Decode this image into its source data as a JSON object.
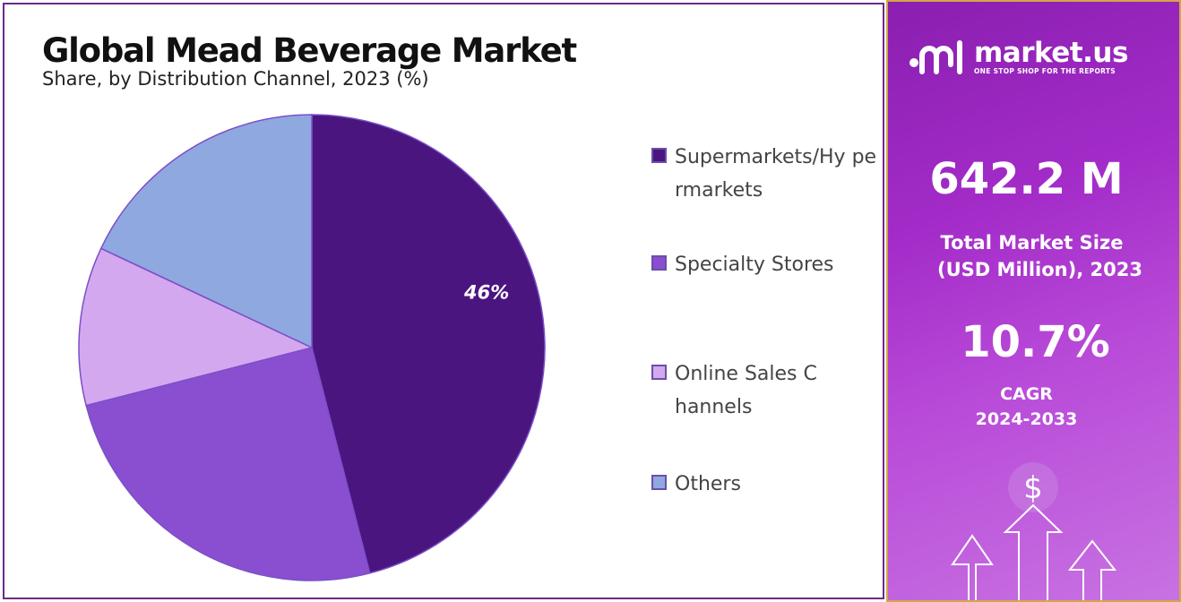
{
  "chart_data": {
    "type": "pie",
    "title": "Global Mead Beverage Market",
    "subtitle": "Share, by Distribution Channel, 2023 (%)",
    "slices": [
      {
        "label": "Supermarkets/Hypermarkets",
        "legend_text": "Supermarkets/Hy permarkets",
        "value": 46,
        "color": "#4b1580",
        "data_label": "46%"
      },
      {
        "label": "Specialty Stores",
        "legend_text": "Specialty Stores",
        "value": 25,
        "color": "#8a4fd0",
        "data_label": ""
      },
      {
        "label": "Online Sales Channels",
        "legend_text": "Online Sales Channels",
        "value": 11,
        "color": "#d4a8ee",
        "data_label": ""
      },
      {
        "label": "Others",
        "legend_text": "Others",
        "value": 18,
        "color": "#8fa8df",
        "data_label": ""
      }
    ],
    "start_angle_deg": 0,
    "direction": "clockwise",
    "legend_position": "right"
  },
  "sidebar": {
    "brand_name": "market.us",
    "brand_tagline": "ONE STOP SHOP FOR THE REPORTS",
    "market_size_value": "642.2 M",
    "market_size_label_line1": "Total Market Size",
    "market_size_label_line2": "(USD Million), 2023",
    "cagr_value": "10.7%",
    "cagr_label_line1": "CAGR",
    "cagr_label_line2": "2024-2033",
    "dollar_symbol": "$"
  },
  "colors": {
    "panel_border": "#6b2a86",
    "sidebar_gradient_start": "#8a1fb0",
    "sidebar_gradient_end": "#c872e2",
    "sidebar_border": "#d3a64a"
  }
}
